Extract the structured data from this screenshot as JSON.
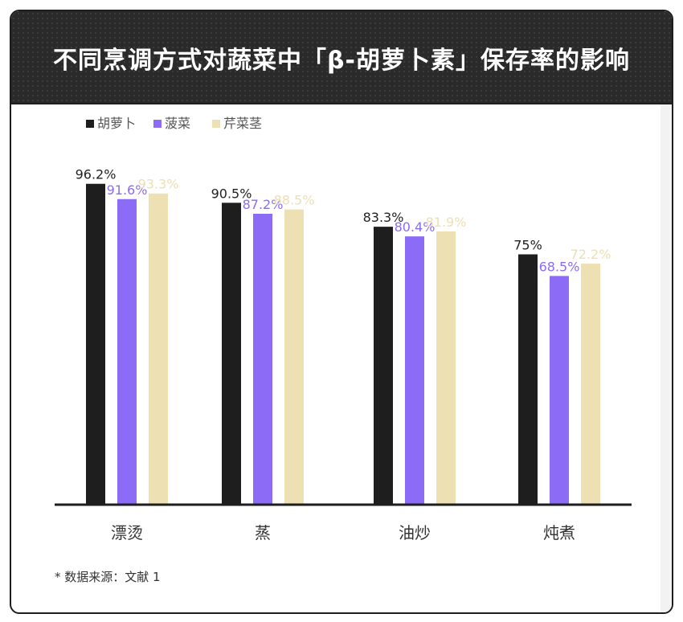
{
  "title": "不同烹调方式对蔬菜中「β-胡萝卜素」保存率的影响",
  "source_note": "* 数据来源：文献 1",
  "colors": {
    "carrot": "#1e1e1e",
    "spinach": "#8c6cf6",
    "celery": "#ede0b3"
  },
  "chart_data": {
    "type": "bar",
    "categories": [
      "漂烫",
      "蒸",
      "油炒",
      "炖煮"
    ],
    "series": [
      {
        "name": "胡萝卜",
        "values": [
          96.2,
          90.5,
          83.3,
          75
        ],
        "labels": [
          "96.2%",
          "90.5%",
          "83.3%",
          "75%"
        ]
      },
      {
        "name": "菠菜",
        "values": [
          91.6,
          87.2,
          80.4,
          68.5
        ],
        "labels": [
          "91.6%",
          "87.2%",
          "80.4%",
          "68.5%"
        ]
      },
      {
        "name": "芹菜茎",
        "values": [
          93.3,
          88.5,
          81.9,
          72.2
        ],
        "labels": [
          "93.3%",
          "88.5%",
          "81.9%",
          "72.2%"
        ]
      }
    ],
    "ylim": [
      0,
      100
    ],
    "legend_position": "top-left",
    "grid": false
  }
}
